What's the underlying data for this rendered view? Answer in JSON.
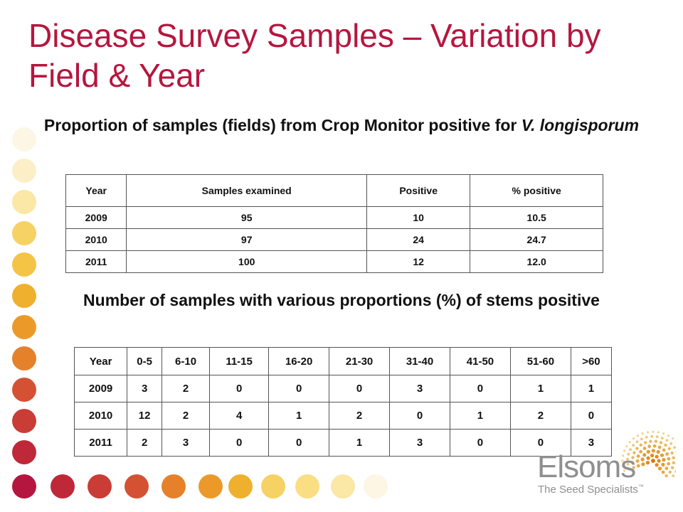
{
  "slide": {
    "title": "Disease Survey Samples – Variation by Field & Year",
    "subtitle1_main": "Proportion of samples (fields) from Crop Monitor positive for ",
    "subtitle1_italic": "V. longisporum",
    "subtitle2": "Number of samples with various proportions (%) of stems positive"
  },
  "table1": {
    "headers": [
      "Year",
      "Samples examined",
      "Positive",
      "% positive"
    ],
    "rows": [
      [
        "2009",
        "95",
        "10",
        "10.5"
      ],
      [
        "2010",
        "97",
        "24",
        "24.7"
      ],
      [
        "2011",
        "100",
        "12",
        "12.0"
      ]
    ]
  },
  "table2": {
    "headers": [
      "Year",
      "0-5",
      "6-10",
      "11-15",
      "16-20",
      "21-30",
      "31-40",
      "41-50",
      "51-60",
      ">60"
    ],
    "rows": [
      [
        "2009",
        "3",
        "2",
        "0",
        "0",
        "0",
        "3",
        "0",
        "1",
        "1"
      ],
      [
        "2010",
        "12",
        "2",
        "4",
        "1",
        "2",
        "0",
        "1",
        "2",
        "0"
      ],
      [
        "2011",
        "2",
        "3",
        "0",
        "0",
        "1",
        "3",
        "0",
        "0",
        "3"
      ]
    ]
  },
  "logo": {
    "wordmark": "Elsoms",
    "tagline": "The Seed Specialists",
    "trademark": "™",
    "brand_color": "#8f8f8f",
    "accent_color": "#e08a1e"
  },
  "colors": {
    "title": "#b5163f"
  }
}
